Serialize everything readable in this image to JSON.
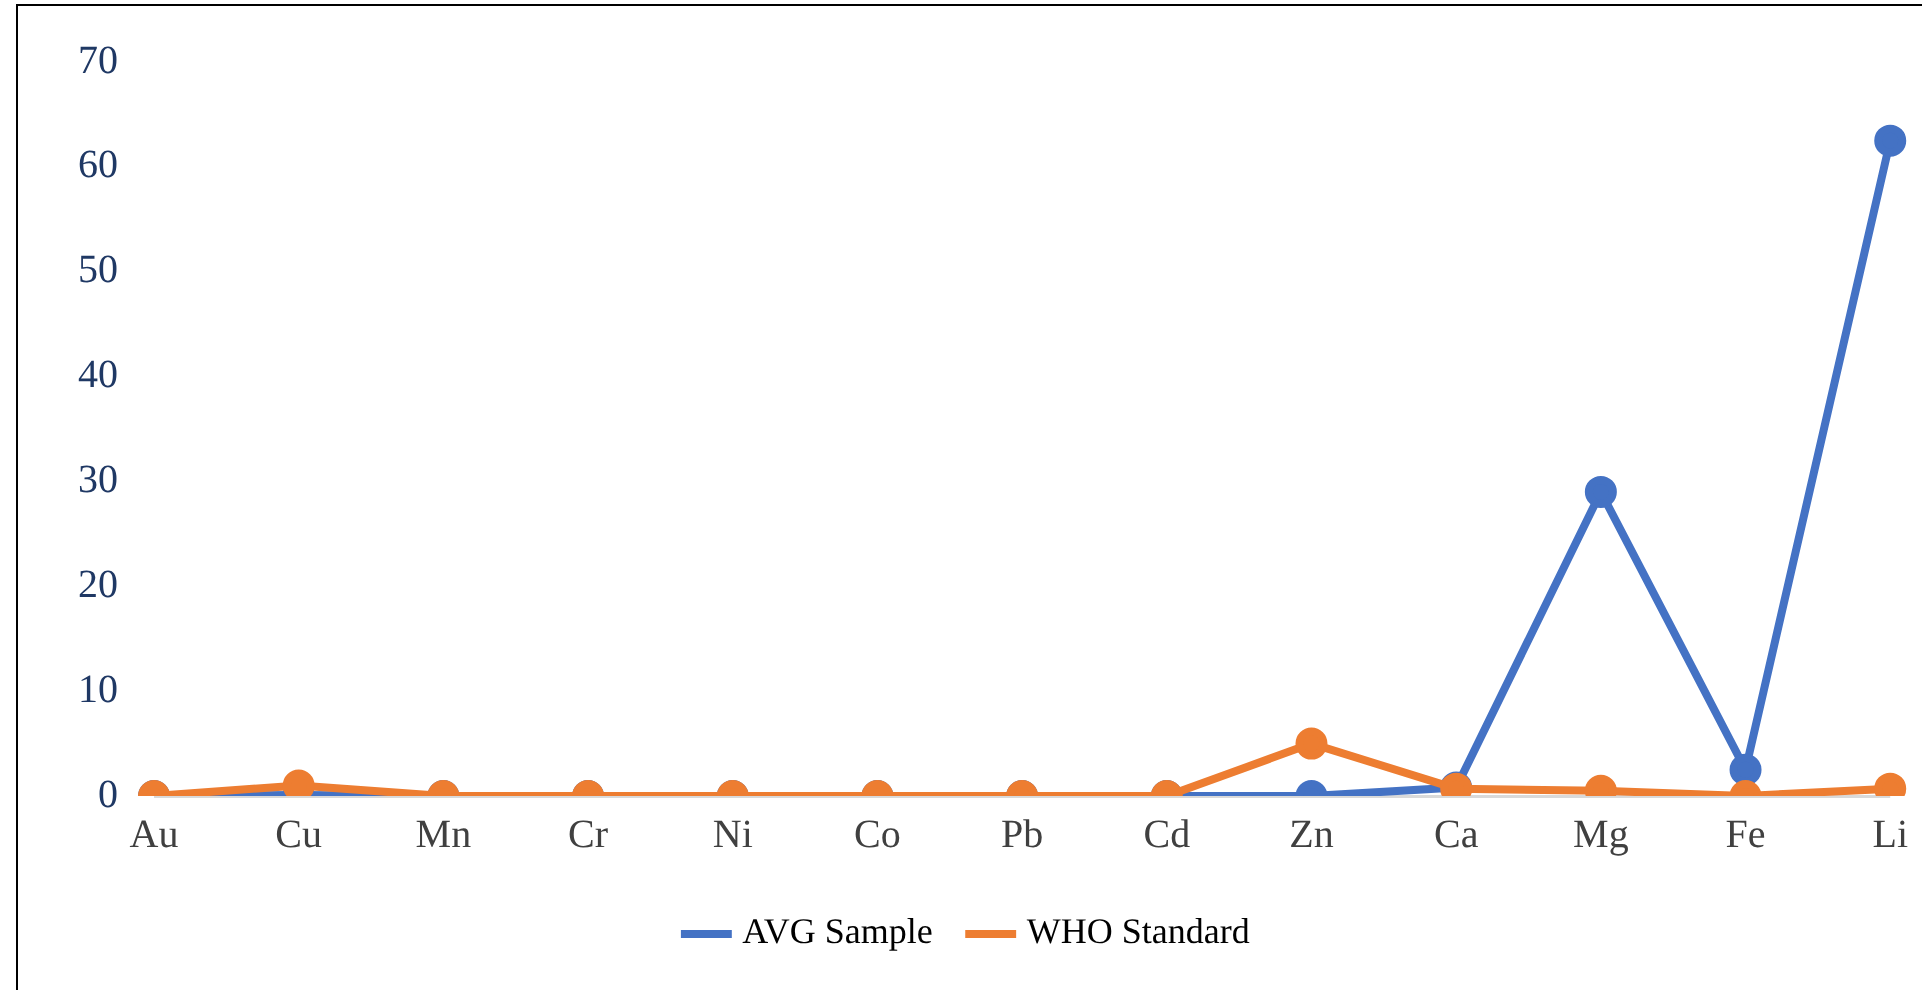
{
  "chart_data": {
    "type": "line",
    "categories": [
      "Au",
      "Cu",
      "Mn",
      "Cr",
      "Ni",
      "Co",
      "Pb",
      "Cd",
      "Zn",
      "Ca",
      "Mg",
      "Fe",
      "Li"
    ],
    "series": [
      {
        "name": "AVG Sample",
        "color": "#4472c4",
        "values": [
          0,
          0.1,
          0,
          0,
          0,
          0,
          0,
          0,
          0,
          0.8,
          29,
          2.5,
          62.5
        ]
      },
      {
        "name": "WHO Standard",
        "color": "#ed7d31",
        "values": [
          0,
          1,
          0,
          0,
          0,
          0,
          0,
          0,
          5,
          0.7,
          0.5,
          0,
          0.7
        ]
      }
    ],
    "ylim": [
      0,
      70
    ],
    "yticks": [
      0,
      10,
      20,
      30,
      40,
      50,
      60,
      70
    ],
    "grid": false,
    "legend": "bottom",
    "marker": "circle",
    "line_style": "solid"
  }
}
